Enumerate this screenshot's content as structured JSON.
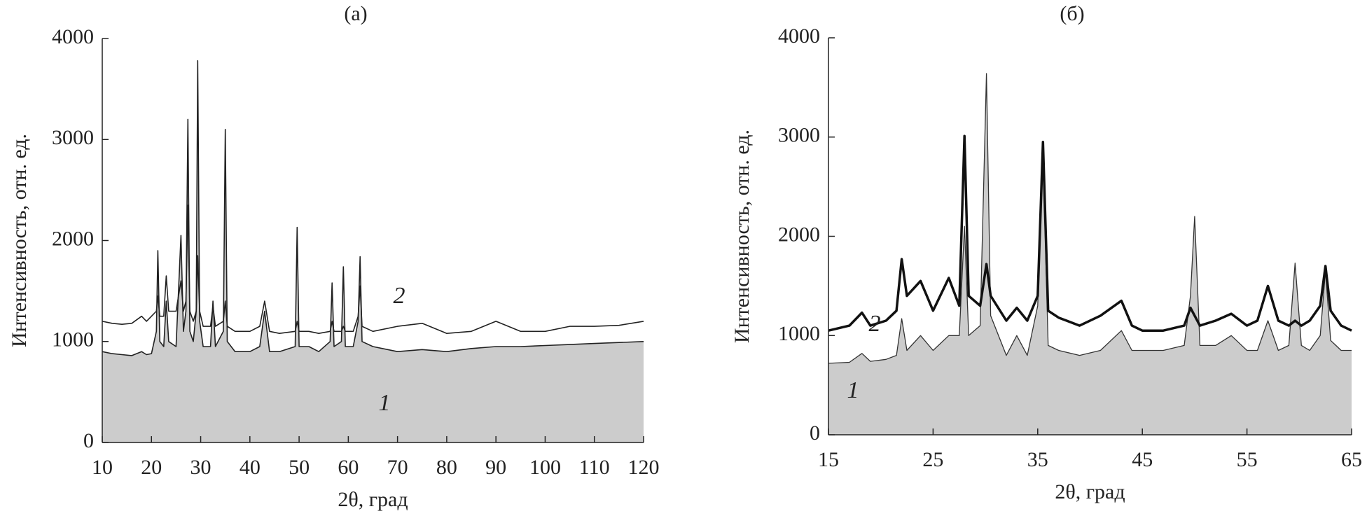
{
  "chart_data": [
    {
      "type": "line",
      "title": "(а)",
      "x_label": "2θ, град",
      "y_label": "Интенсивность, отн. ед.",
      "x": [
        10,
        12,
        14,
        16,
        18,
        19,
        20,
        21,
        21.3,
        21.7,
        22.5,
        23,
        23.5,
        25,
        26,
        26.5,
        27,
        27.4,
        27.8,
        28.5,
        29.1,
        29.4,
        29.8,
        30.5,
        32,
        32.5,
        33,
        34.6,
        35,
        35.4,
        37,
        40,
        42,
        43,
        44,
        46,
        49.2,
        49.6,
        50,
        52,
        54,
        56.3,
        56.7,
        57.1,
        58.6,
        59,
        59.4,
        61,
        62,
        62.4,
        62.8,
        65,
        70,
        75,
        80,
        85,
        90,
        95,
        100,
        105,
        110,
        115,
        120
      ],
      "series": [
        {
          "name": "1",
          "color": "#222222",
          "fill": "#cccccc",
          "values": [
            900,
            880,
            870,
            860,
            900,
            870,
            880,
            1100,
            1900,
            1000,
            950,
            1400,
            1000,
            950,
            2050,
            1100,
            1300,
            3200,
            1100,
            1000,
            1300,
            3780,
            1200,
            950,
            950,
            1400,
            950,
            1100,
            3100,
            1000,
            900,
            900,
            950,
            1300,
            900,
            900,
            950,
            2130,
            950,
            950,
            900,
            1000,
            1580,
            950,
            1000,
            1740,
            950,
            950,
            1200,
            1840,
            1000,
            950,
            900,
            920,
            900,
            930,
            950,
            950,
            960,
            970,
            980,
            990,
            1000
          ]
        },
        {
          "name": "2",
          "color": "#222222",
          "values": [
            1200,
            1180,
            1170,
            1180,
            1250,
            1200,
            1250,
            1300,
            1450,
            1250,
            1250,
            1650,
            1300,
            1300,
            1600,
            1300,
            1400,
            2350,
            1300,
            1200,
            1300,
            1850,
            1300,
            1150,
            1150,
            1350,
            1150,
            1200,
            1400,
            1150,
            1100,
            1100,
            1150,
            1400,
            1100,
            1080,
            1100,
            1200,
            1100,
            1100,
            1080,
            1100,
            1200,
            1100,
            1100,
            1150,
            1100,
            1100,
            1250,
            1550,
            1150,
            1100,
            1150,
            1180,
            1080,
            1100,
            1200,
            1100,
            1100,
            1150,
            1150,
            1160,
            1200
          ]
        }
      ],
      "xlim": [
        10,
        120
      ],
      "xticks": [
        10,
        20,
        30,
        40,
        50,
        60,
        70,
        80,
        90,
        100,
        110,
        120
      ],
      "ylim": [
        0,
        4000
      ],
      "yticks": [
        0,
        1000,
        2000,
        3000,
        4000
      ]
    },
    {
      "type": "line",
      "title": "(б)",
      "x_label": "2θ, град",
      "y_label": "Интенсивность, отн. ед.",
      "x": [
        15,
        17,
        18.2,
        19,
        20.5,
        21.5,
        22,
        22.5,
        23.8,
        25,
        26.5,
        27.5,
        28,
        28.4,
        29.5,
        30.1,
        30.5,
        32,
        33,
        34,
        35,
        35.5,
        36,
        37,
        39,
        41,
        43,
        44,
        45,
        47,
        49,
        49.6,
        50,
        50.5,
        52,
        53.5,
        55,
        56,
        57,
        58,
        59,
        59.6,
        60.2,
        61,
        62,
        62.5,
        63,
        64,
        65
      ],
      "series": [
        {
          "name": "1",
          "color": "#333333",
          "fill": "#cccccc",
          "values": [
            720,
            730,
            820,
            740,
            760,
            800,
            1170,
            850,
            1000,
            850,
            1000,
            1000,
            2100,
            1000,
            1100,
            3640,
            1200,
            800,
            1000,
            800,
            1300,
            2850,
            900,
            850,
            800,
            850,
            1050,
            850,
            850,
            850,
            900,
            1400,
            2200,
            900,
            900,
            1000,
            850,
            850,
            1150,
            850,
            900,
            1730,
            900,
            850,
            1000,
            1650,
            950,
            850,
            850
          ]
        },
        {
          "name": "2",
          "color": "#111111",
          "values": [
            1050,
            1100,
            1230,
            1100,
            1150,
            1250,
            1770,
            1400,
            1550,
            1250,
            1580,
            1300,
            3010,
            1400,
            1300,
            1720,
            1400,
            1150,
            1280,
            1150,
            1400,
            2950,
            1250,
            1180,
            1100,
            1200,
            1350,
            1100,
            1050,
            1050,
            1100,
            1280,
            1200,
            1100,
            1150,
            1220,
            1100,
            1150,
            1500,
            1150,
            1100,
            1150,
            1100,
            1150,
            1300,
            1700,
            1250,
            1100,
            1050
          ]
        }
      ],
      "xlim": [
        15,
        65
      ],
      "xticks": [
        15,
        25,
        35,
        45,
        55,
        65
      ],
      "ylim": [
        0,
        4000
      ],
      "yticks": [
        0,
        1000,
        2000,
        3000,
        4000
      ]
    }
  ]
}
